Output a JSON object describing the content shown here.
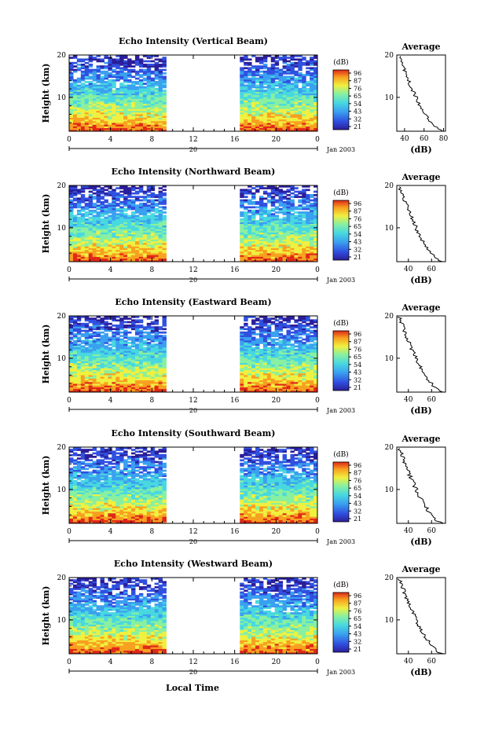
{
  "chart_data": [
    {
      "type": "heatmap",
      "title": "Echo Intensity (Vertical Beam)",
      "ylabel": "Height (km)",
      "x_ticks": [
        "0",
        "4",
        "8",
        "12",
        "16",
        "20",
        "0"
      ],
      "y_ticks": [
        "10",
        "20"
      ],
      "date_axis": {
        "label": "20",
        "date": "Jan 2003"
      },
      "xlim": [
        0,
        24
      ],
      "ylim": [
        2,
        20
      ],
      "data_gap_hours": [
        9.2,
        16.6
      ],
      "colorbar": {
        "unit": "(dB)",
        "ticks": [
          "96",
          "87",
          "76",
          "65",
          "54",
          "43",
          "32",
          "21"
        ]
      },
      "avg_profile": {
        "title": "Average",
        "xlabel": "(dB)",
        "x_ticks": [
          "40",
          "60",
          "80"
        ],
        "xlim": [
          32,
          82
        ],
        "y_ticks": [
          "10",
          "20"
        ],
        "ylim": [
          2,
          20
        ]
      }
    },
    {
      "type": "heatmap",
      "title": "Echo Intensity (Northward Beam)",
      "ylabel": "Height (km)",
      "x_ticks": [
        "0",
        "4",
        "8",
        "12",
        "16",
        "20",
        "0"
      ],
      "y_ticks": [
        "10",
        "20"
      ],
      "date_axis": {
        "label": "20",
        "date": "Jan 2003"
      },
      "xlim": [
        0,
        24
      ],
      "ylim": [
        2,
        20
      ],
      "data_gap_hours": [
        9.2,
        16.6
      ],
      "colorbar": {
        "unit": "(dB)",
        "ticks": [
          "96",
          "87",
          "76",
          "65",
          "54",
          "43",
          "32",
          "21"
        ]
      },
      "avg_profile": {
        "title": "Average",
        "xlabel": "(dB)",
        "x_ticks": [
          "40",
          "60"
        ],
        "xlim": [
          30,
          72
        ],
        "y_ticks": [
          "10",
          "20"
        ],
        "ylim": [
          2,
          20
        ]
      }
    },
    {
      "type": "heatmap",
      "title": "Echo Intensity (Eastward Beam)",
      "ylabel": "Height (km)",
      "x_ticks": [
        "0",
        "4",
        "8",
        "12",
        "16",
        "20",
        "0"
      ],
      "y_ticks": [
        "10",
        "20"
      ],
      "date_axis": {
        "label": "20",
        "date": "Jan 2003"
      },
      "xlim": [
        0,
        24
      ],
      "ylim": [
        2,
        20
      ],
      "data_gap_hours": [
        9.2,
        16.6
      ],
      "colorbar": {
        "unit": "(dB)",
        "ticks": [
          "96",
          "87",
          "76",
          "65",
          "54",
          "43",
          "32",
          "21"
        ]
      },
      "avg_profile": {
        "title": "Average",
        "xlabel": "(dB)",
        "x_ticks": [
          "40",
          "60"
        ],
        "xlim": [
          30,
          72
        ],
        "y_ticks": [
          "10",
          "20"
        ],
        "ylim": [
          2,
          20
        ]
      }
    },
    {
      "type": "heatmap",
      "title": "Echo Intensity (Southward Beam)",
      "ylabel": "Height (km)",
      "x_ticks": [
        "0",
        "4",
        "8",
        "12",
        "16",
        "20",
        "0"
      ],
      "y_ticks": [
        "10",
        "20"
      ],
      "date_axis": {
        "label": "20",
        "date": "Jan 2003"
      },
      "xlim": [
        0,
        24
      ],
      "ylim": [
        2,
        20
      ],
      "data_gap_hours": [
        9.2,
        16.6
      ],
      "colorbar": {
        "unit": "(dB)",
        "ticks": [
          "96",
          "87",
          "76",
          "65",
          "54",
          "43",
          "32",
          "21"
        ]
      },
      "avg_profile": {
        "title": "Average",
        "xlabel": "(dB)",
        "x_ticks": [
          "40",
          "60"
        ],
        "xlim": [
          30,
          72
        ],
        "y_ticks": [
          "10",
          "20"
        ],
        "ylim": [
          2,
          20
        ]
      }
    },
    {
      "type": "heatmap",
      "title": "Echo Intensity (Westward Beam)",
      "ylabel": "Height (km)",
      "x_ticks": [
        "0",
        "4",
        "8",
        "12",
        "16",
        "20",
        "0"
      ],
      "y_ticks": [
        "10",
        "20"
      ],
      "date_axis": {
        "label": "20",
        "date": "Jan 2003"
      },
      "xlim": [
        0,
        24
      ],
      "ylim": [
        2,
        20
      ],
      "data_gap_hours": [
        9.2,
        16.6
      ],
      "colorbar": {
        "unit": "(dB)",
        "ticks": [
          "96",
          "87",
          "76",
          "65",
          "54",
          "43",
          "32",
          "21"
        ]
      },
      "avg_profile": {
        "title": "Average",
        "xlabel": "(dB)",
        "x_ticks": [
          "40",
          "60"
        ],
        "xlim": [
          30,
          72
        ],
        "y_ticks": [
          "10",
          "20"
        ],
        "ylim": [
          2,
          20
        ]
      }
    }
  ],
  "shared": {
    "xlabel": "Local Time"
  },
  "colors": {
    "colormap": [
      "#2b1e9a",
      "#3050e0",
      "#3aa0f0",
      "#48d8e0",
      "#88f0a0",
      "#f0f040",
      "#f8a020",
      "#e02818"
    ]
  }
}
